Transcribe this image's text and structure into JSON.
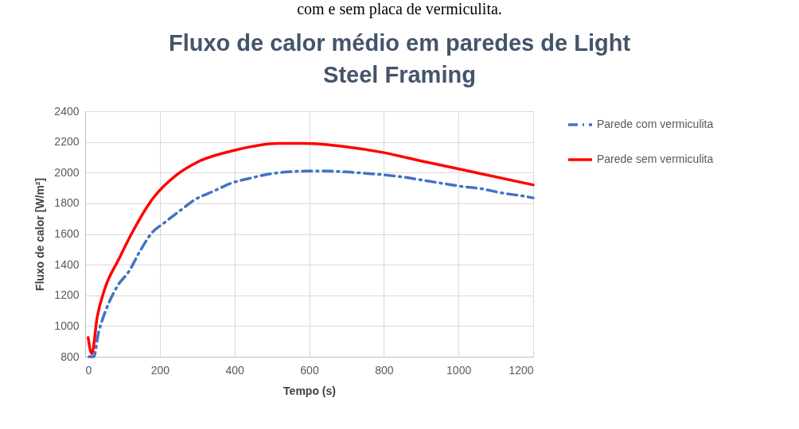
{
  "chart_data": {
    "type": "line",
    "title": "Fluxo de calor médio em paredes de Light Steel Framing",
    "xlabel": "Tempo (s)",
    "ylabel": "Fluxo de calor [W/m²]",
    "annotations": [
      "com e sem placa de vermiculita."
    ],
    "series": [
      {
        "name": "Parede com vermiculita",
        "color": "#4472c4",
        "line_style": "dashed",
        "x": [
          10,
          23,
          36,
          46,
          68,
          89,
          117,
          146,
          178,
          213,
          253,
          295,
          345,
          390,
          445,
          491,
          544,
          594,
          647,
          698,
          751,
          803,
          854,
          905,
          956,
          1008,
          1061,
          1110,
          1178,
          1200
        ],
        "values": [
          800,
          800,
          960,
          1040,
          1175,
          1270,
          1355,
          1485,
          1605,
          1675,
          1750,
          1825,
          1880,
          1930,
          1965,
          1990,
          2005,
          2010,
          2010,
          2005,
          1995,
          1985,
          1970,
          1950,
          1930,
          1910,
          1895,
          1870,
          1845,
          1835
        ]
      },
      {
        "name": "Parede sem vermiculita",
        "color": "#ff0000",
        "line_style": "solid",
        "x": [
          8,
          18,
          32,
          53,
          89,
          125,
          181,
          245,
          302,
          400,
          516,
          587,
          694,
          800,
          901,
          999,
          1200
        ],
        "values": [
          925,
          820,
          1055,
          1245,
          1430,
          1605,
          1830,
          1985,
          2070,
          2145,
          2190,
          2190,
          2170,
          2130,
          2075,
          2025,
          1920
        ]
      }
    ],
    "xlim": [
      0,
      1200
    ],
    "xticks": [
      0,
      200,
      400,
      600,
      800,
      1000,
      1200
    ],
    "ylim": [
      800,
      2400
    ],
    "yticks": [
      800,
      1000,
      1200,
      1400,
      1600,
      1800,
      2000,
      2200,
      2400
    ],
    "grid": true,
    "legend": "right"
  }
}
